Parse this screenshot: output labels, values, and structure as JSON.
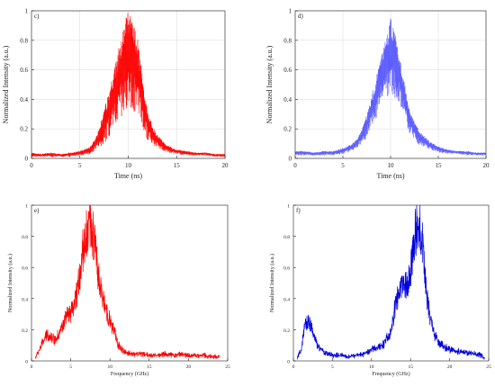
{
  "chart_data": [
    {
      "id": "c",
      "type": "line",
      "panel_label": "c)",
      "xlabel": "Time (ns)",
      "ylabel": "Normalized Intensity (a.u.)",
      "xlim": [
        0,
        20
      ],
      "ylim": [
        0,
        1
      ],
      "xticks": [
        "0",
        "5",
        "10",
        "15",
        "20"
      ],
      "yticks": [
        "0",
        "0.2",
        "0.4",
        "0.6",
        "0.8",
        "1"
      ],
      "grid": true,
      "color": "#ff0000",
      "series": [
        {
          "x": [
            0,
            1,
            2,
            3,
            4,
            5,
            6,
            6.5,
            7,
            7.5,
            8,
            8.5,
            9,
            9.5,
            10,
            10.5,
            11,
            11.5,
            12,
            12.5,
            13,
            14,
            15,
            16,
            17,
            18,
            19,
            20
          ],
          "y": [
            0.04,
            0.03,
            0.04,
            0.03,
            0.04,
            0.05,
            0.08,
            0.12,
            0.2,
            0.33,
            0.45,
            0.6,
            0.75,
            0.9,
            1.0,
            0.93,
            0.8,
            0.55,
            0.33,
            0.22,
            0.16,
            0.09,
            0.06,
            0.05,
            0.04,
            0.04,
            0.03,
            0.03
          ],
          "lower": [
            0.01,
            0.01,
            0.01,
            0.01,
            0.01,
            0.02,
            0.03,
            0.05,
            0.07,
            0.1,
            0.14,
            0.18,
            0.22,
            0.26,
            0.3,
            0.3,
            0.25,
            0.18,
            0.12,
            0.09,
            0.07,
            0.04,
            0.03,
            0.02,
            0.02,
            0.02,
            0.01,
            0.01
          ]
        }
      ]
    },
    {
      "id": "d",
      "type": "line",
      "panel_label": "d)",
      "xlabel": "Time (ns)",
      "ylabel": "Normalized Intensity (a.u.)",
      "xlim": [
        0,
        20
      ],
      "ylim": [
        0,
        1
      ],
      "xticks": [
        "0",
        "5",
        "10",
        "15",
        "20"
      ],
      "yticks": [
        "0",
        "0.2",
        "0.4",
        "0.6",
        "0.8",
        "1"
      ],
      "grid": true,
      "color": "#5a5aff",
      "series": [
        {
          "x": [
            0,
            1,
            2,
            3,
            4,
            5,
            6,
            6.5,
            7,
            7.5,
            8,
            8.5,
            9,
            9.5,
            10,
            10.5,
            11,
            11.5,
            12,
            12.5,
            13,
            14,
            15,
            16,
            17,
            18,
            19,
            20
          ],
          "y": [
            0.05,
            0.05,
            0.04,
            0.05,
            0.05,
            0.07,
            0.1,
            0.14,
            0.2,
            0.3,
            0.42,
            0.55,
            0.68,
            0.82,
            0.96,
            0.85,
            0.68,
            0.5,
            0.33,
            0.25,
            0.19,
            0.12,
            0.08,
            0.06,
            0.05,
            0.05,
            0.04,
            0.04
          ],
          "lower": [
            0.02,
            0.02,
            0.02,
            0.02,
            0.02,
            0.03,
            0.05,
            0.07,
            0.1,
            0.14,
            0.2,
            0.26,
            0.32,
            0.38,
            0.42,
            0.4,
            0.33,
            0.25,
            0.17,
            0.12,
            0.09,
            0.06,
            0.04,
            0.03,
            0.03,
            0.02,
            0.02,
            0.02
          ]
        }
      ]
    },
    {
      "id": "e",
      "type": "line",
      "panel_label": "e)",
      "xlabel": "Frequency (GHz)",
      "ylabel": "Normalized Intensity (a.u.)",
      "xlim": [
        0,
        25
      ],
      "ylim": [
        0,
        1
      ],
      "xticks": [
        "0",
        "5",
        "10",
        "15",
        "20",
        "25"
      ],
      "yticks": [
        "0",
        "0.2",
        "0.4",
        "0.6",
        "0.8",
        "1"
      ],
      "grid": false,
      "color": "#ff0000",
      "series": [
        {
          "x": [
            0.5,
            1,
            1.5,
            2,
            2.5,
            3,
            3.5,
            4,
            4.5,
            5,
            5.5,
            6,
            6.5,
            7,
            7.5,
            8,
            8.5,
            9,
            9.5,
            10,
            10.5,
            11,
            11.5,
            12,
            13,
            14,
            15,
            16,
            17,
            18,
            19,
            20,
            21,
            22,
            23,
            24
          ],
          "y": [
            0.02,
            0.08,
            0.14,
            0.19,
            0.17,
            0.15,
            0.2,
            0.25,
            0.32,
            0.33,
            0.4,
            0.55,
            0.78,
            0.9,
            1.0,
            0.86,
            0.6,
            0.45,
            0.38,
            0.28,
            0.22,
            0.12,
            0.08,
            0.06,
            0.05,
            0.05,
            0.04,
            0.04,
            0.05,
            0.04,
            0.05,
            0.04,
            0.04,
            0.04,
            0.03,
            0.03
          ]
        }
      ]
    },
    {
      "id": "f",
      "type": "line",
      "panel_label": "f)",
      "xlabel": "Frequency (GHz)",
      "ylabel": "Normalized Intensity (a.u.)",
      "xlim": [
        0,
        25
      ],
      "ylim": [
        0,
        1
      ],
      "xticks": [
        "0",
        "5",
        "10",
        "15",
        "20",
        "25"
      ],
      "yticks": [
        "0",
        "0.2",
        "0.4",
        "0.6",
        "0.8",
        "1"
      ],
      "grid": false,
      "color": "#0000dd",
      "series": [
        {
          "x": [
            0.5,
            1,
            1.5,
            2,
            2.5,
            3,
            3.5,
            4,
            5,
            6,
            7,
            8,
            9,
            10,
            11,
            11.5,
            12,
            12.5,
            13,
            13.5,
            14,
            14.5,
            15,
            15.5,
            16,
            16.5,
            17,
            17.5,
            18,
            18.5,
            19,
            20,
            21,
            22,
            23,
            24,
            24.5
          ],
          "y": [
            0.02,
            0.08,
            0.25,
            0.29,
            0.2,
            0.12,
            0.08,
            0.06,
            0.04,
            0.04,
            0.03,
            0.04,
            0.05,
            0.08,
            0.1,
            0.12,
            0.16,
            0.2,
            0.38,
            0.48,
            0.55,
            0.52,
            0.62,
            0.88,
            1.0,
            0.85,
            0.5,
            0.3,
            0.2,
            0.14,
            0.11,
            0.08,
            0.07,
            0.06,
            0.05,
            0.04,
            0.02
          ]
        }
      ]
    }
  ]
}
